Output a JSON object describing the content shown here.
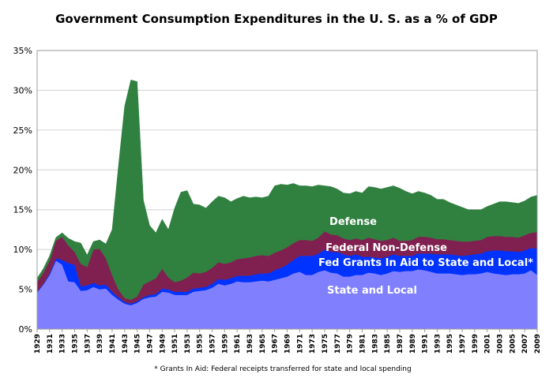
{
  "chart_data": {
    "type": "area",
    "stacked": true,
    "title": "Government Consumption Expenditures in the U. S. as a % of GDP",
    "footnote": "* Grants In Aid: Federal receipts transferred for state and local spending",
    "xlabel": "",
    "ylabel": "",
    "ylim": [
      0,
      35
    ],
    "yticks": [
      "0%",
      "5%",
      "10%",
      "15%",
      "20%",
      "25%",
      "30%",
      "35%"
    ],
    "grid": true,
    "legend": "inline-labels",
    "x": [
      1929,
      1930,
      1931,
      1932,
      1933,
      1934,
      1935,
      1936,
      1937,
      1938,
      1939,
      1940,
      1941,
      1942,
      1943,
      1944,
      1945,
      1946,
      1947,
      1948,
      1949,
      1950,
      1951,
      1952,
      1953,
      1954,
      1955,
      1956,
      1957,
      1958,
      1959,
      1960,
      1961,
      1962,
      1963,
      1964,
      1965,
      1966,
      1967,
      1968,
      1969,
      1970,
      1971,
      1972,
      1973,
      1974,
      1975,
      1976,
      1977,
      1978,
      1979,
      1980,
      1981,
      1982,
      1983,
      1984,
      1985,
      1986,
      1987,
      1988,
      1989,
      1990,
      1991,
      1992,
      1993,
      1994,
      1995,
      1996,
      1997,
      1998,
      1999,
      2000,
      2001,
      2002,
      2003,
      2004,
      2005,
      2006,
      2007,
      2008,
      2009
    ],
    "xticks": [
      "1929",
      "1931",
      "1933",
      "1935",
      "1937",
      "1939",
      "1941",
      "1943",
      "1945",
      "1947",
      "1949",
      "1951",
      "1953",
      "1955",
      "1957",
      "1959",
      "1961",
      "1963",
      "1965",
      "1967",
      "1969",
      "1971",
      "1973",
      "1975",
      "1977",
      "1979",
      "1981",
      "1983",
      "1985",
      "1987",
      "1989",
      "1991",
      "1993",
      "1995",
      "1997",
      "1999",
      "2001",
      "2003",
      "2005",
      "2007",
      "2009"
    ],
    "series": [
      {
        "name": "State and Local",
        "color": "#8080ff",
        "values": [
          4.6,
          5.6,
          6.8,
          8.6,
          8.1,
          6.0,
          5.9,
          4.8,
          4.9,
          5.3,
          5.0,
          5.1,
          4.3,
          3.7,
          3.2,
          3.0,
          3.3,
          3.8,
          4.0,
          4.1,
          4.7,
          4.6,
          4.3,
          4.3,
          4.3,
          4.7,
          4.8,
          4.9,
          5.2,
          5.7,
          5.5,
          5.7,
          6.0,
          5.9,
          5.9,
          6.0,
          6.1,
          6.0,
          6.2,
          6.4,
          6.6,
          7.0,
          7.2,
          6.8,
          6.8,
          7.2,
          7.4,
          7.1,
          7.0,
          6.6,
          6.6,
          6.8,
          6.8,
          7.1,
          7.0,
          6.8,
          7.0,
          7.3,
          7.2,
          7.3,
          7.3,
          7.5,
          7.4,
          7.2,
          7.0,
          7.0,
          7.0,
          6.9,
          6.8,
          6.9,
          6.9,
          7.0,
          7.2,
          7.0,
          6.9,
          6.8,
          6.9,
          6.9,
          7.0,
          7.4,
          6.8
        ]
      },
      {
        "name": "Fed Grants In Aid to State and Local*",
        "color": "#0033ff",
        "values": [
          0.1,
          0.1,
          0.2,
          0.3,
          0.6,
          2.3,
          2.2,
          0.6,
          0.6,
          0.5,
          0.5,
          0.5,
          0.4,
          0.3,
          0.2,
          0.2,
          0.2,
          0.2,
          0.3,
          0.3,
          0.4,
          0.4,
          0.4,
          0.4,
          0.4,
          0.4,
          0.4,
          0.4,
          0.5,
          0.6,
          0.7,
          0.7,
          0.7,
          0.8,
          0.8,
          0.9,
          0.9,
          1.0,
          1.2,
          1.3,
          1.5,
          1.7,
          2.0,
          2.4,
          2.4,
          2.3,
          2.6,
          2.6,
          2.7,
          2.8,
          2.6,
          2.6,
          2.3,
          2.0,
          2.0,
          2.1,
          2.1,
          2.1,
          2.0,
          1.9,
          1.9,
          2.0,
          2.1,
          2.3,
          2.4,
          2.4,
          2.4,
          2.4,
          2.4,
          2.4,
          2.5,
          2.5,
          2.6,
          2.9,
          3.0,
          3.0,
          2.9,
          2.8,
          2.9,
          2.8,
          3.3
        ]
      },
      {
        "name": "Federal Non-Defense",
        "color": "#802050",
        "values": [
          1.2,
          1.4,
          1.6,
          2.2,
          2.9,
          2.2,
          1.6,
          2.8,
          2.3,
          4.2,
          4.6,
          3.3,
          2.1,
          1.0,
          0.5,
          0.5,
          0.6,
          1.6,
          1.7,
          2.0,
          2.5,
          1.5,
          1.2,
          1.4,
          1.8,
          2.0,
          1.8,
          1.9,
          2.0,
          2.1,
          2.0,
          2.0,
          2.1,
          2.2,
          2.3,
          2.3,
          2.3,
          2.2,
          2.2,
          2.2,
          2.2,
          2.1,
          2.0,
          2.0,
          1.9,
          2.0,
          2.3,
          2.2,
          2.1,
          2.0,
          2.0,
          2.0,
          2.1,
          2.4,
          2.3,
          2.2,
          2.1,
          2.1,
          1.9,
          1.9,
          2.0,
          2.1,
          2.1,
          2.0,
          1.9,
          1.9,
          1.8,
          1.8,
          1.8,
          1.7,
          1.7,
          1.7,
          1.8,
          1.8,
          1.8,
          1.8,
          1.8,
          1.8,
          1.9,
          1.9,
          2.1
        ]
      },
      {
        "name": "Defense",
        "color": "#308040",
        "values": [
          0.5,
          0.5,
          0.6,
          0.4,
          0.5,
          0.9,
          1.3,
          2.6,
          1.5,
          1.0,
          1.1,
          1.8,
          5.7,
          15.4,
          24.1,
          27.6,
          27.0,
          10.6,
          7.0,
          5.7,
          6.2,
          6.0,
          9.3,
          11.1,
          10.9,
          8.6,
          8.6,
          8.0,
          8.3,
          8.3,
          8.3,
          7.6,
          7.6,
          7.8,
          7.5,
          7.4,
          7.2,
          7.5,
          8.4,
          8.3,
          7.8,
          7.5,
          6.8,
          6.8,
          6.8,
          6.6,
          5.7,
          6.0,
          5.8,
          5.7,
          5.8,
          5.9,
          5.9,
          6.4,
          6.5,
          6.5,
          6.6,
          6.5,
          6.6,
          6.2,
          5.8,
          5.7,
          5.5,
          5.3,
          5.0,
          5.0,
          4.7,
          4.5,
          4.3,
          4.0,
          3.9,
          3.8,
          3.8,
          4.0,
          4.3,
          4.4,
          4.3,
          4.3,
          4.3,
          4.5,
          4.6
        ]
      }
    ],
    "series_labels": {
      "defense": "Defense",
      "nondefense": "Federal Non-Defense",
      "grants": "Fed Grants In Aid to State and Local*",
      "statelocal": "State and Local"
    }
  }
}
